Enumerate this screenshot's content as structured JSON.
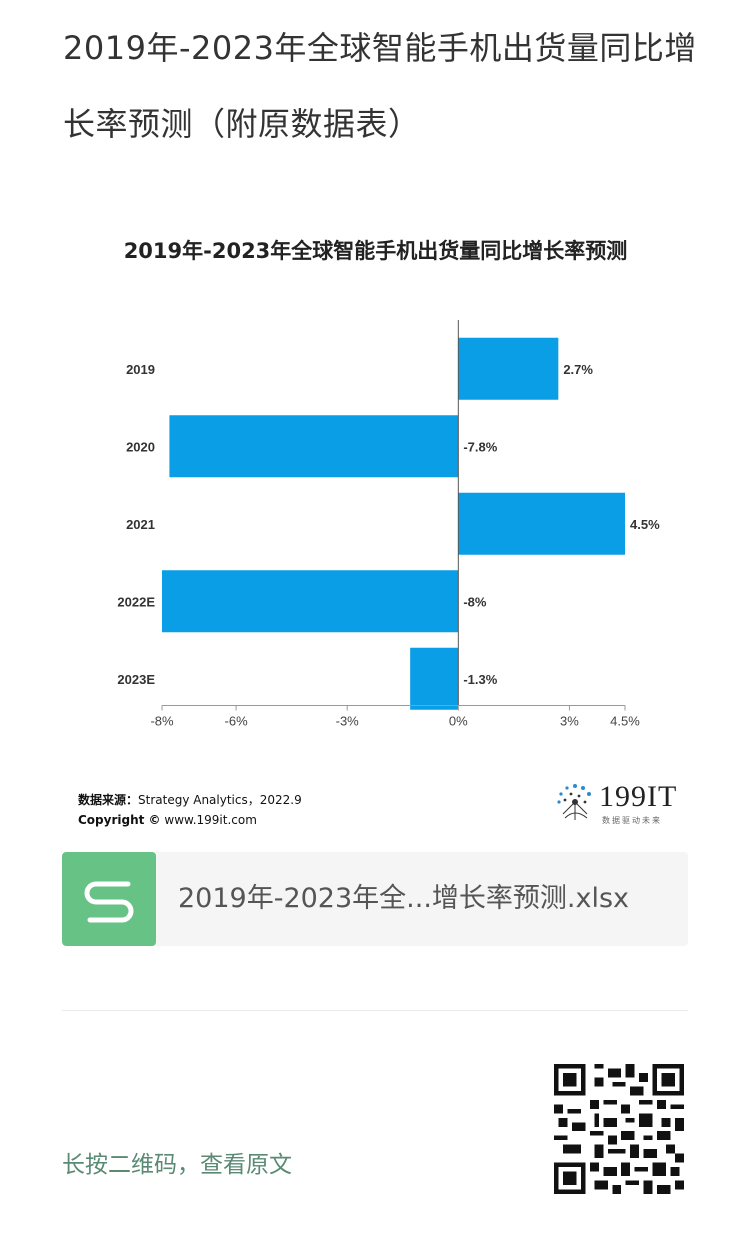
{
  "article": {
    "title": "2019年-2023年全球智能手机出货量同比增长率预测（附原数据表）"
  },
  "chart_data": {
    "type": "bar",
    "orientation": "horizontal",
    "title": "2019年-2023年全球智能手机出货量同比增长率预测",
    "categories": [
      "2019",
      "2020",
      "2021",
      "2022E",
      "2023E"
    ],
    "values": [
      2.7,
      -7.8,
      4.5,
      -8,
      -1.3
    ],
    "value_labels": [
      "2.7%",
      "-7.8%",
      "4.5%",
      "-8%",
      "-1.3%"
    ],
    "x_ticks": [
      -8,
      -6,
      -3,
      0,
      3,
      4.5
    ],
    "x_tick_labels": [
      "-8%",
      "-6%",
      "-3%",
      "0%",
      "3%",
      "4.5%"
    ],
    "xlim": [
      -8,
      4.5
    ],
    "bar_color": "#0a9ee6",
    "grid": false,
    "legend": "none"
  },
  "source": {
    "label": "数据来源：",
    "text": "Strategy Analytics，2022.9",
    "copyright_label": "Copyright ©",
    "copyright_text": "www.199it.com"
  },
  "logo": {
    "text": "199IT",
    "tagline": "数据驱动未来"
  },
  "attachment": {
    "file_name": "2019年-2023年全...增长率预测.xlsx",
    "icon": "spreadsheet-s-icon",
    "icon_color": "#66c285"
  },
  "footer": {
    "longpress_text": "长按二维码，查看原文",
    "qr_icon": "qr-code-icon"
  }
}
